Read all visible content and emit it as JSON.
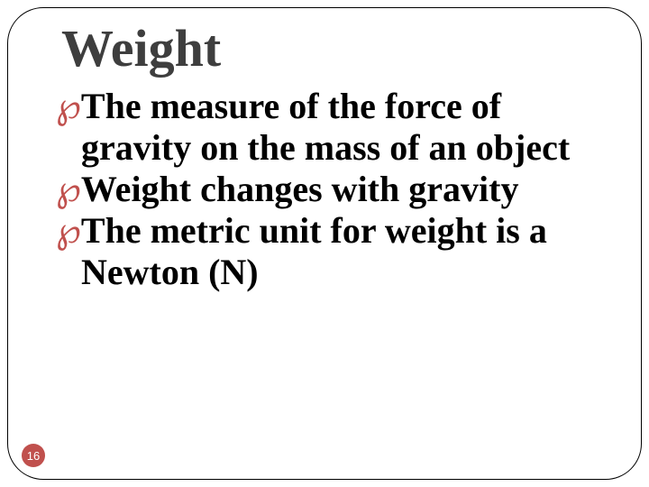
{
  "slide": {
    "title": "Weight",
    "title_fontsize": 58,
    "title_color": "#3e3e3e",
    "bullets": [
      "The measure of the force of gravity on the mass of an object",
      "Weight changes with gravity",
      "The metric unit for weight is a Newton (N)"
    ],
    "bullet_fontsize": 40,
    "bullet_color": "#000000",
    "bullet_marker": "་",
    "bullet_marker_display": "℘",
    "bullet_marker_color": "#c0504d",
    "page_number": "16",
    "page_badge_bg": "#c0504d",
    "page_badge_fg": "#ffffff",
    "frame_border_color": "#000000",
    "frame_border_radius": 40,
    "background_color": "#ffffff"
  }
}
